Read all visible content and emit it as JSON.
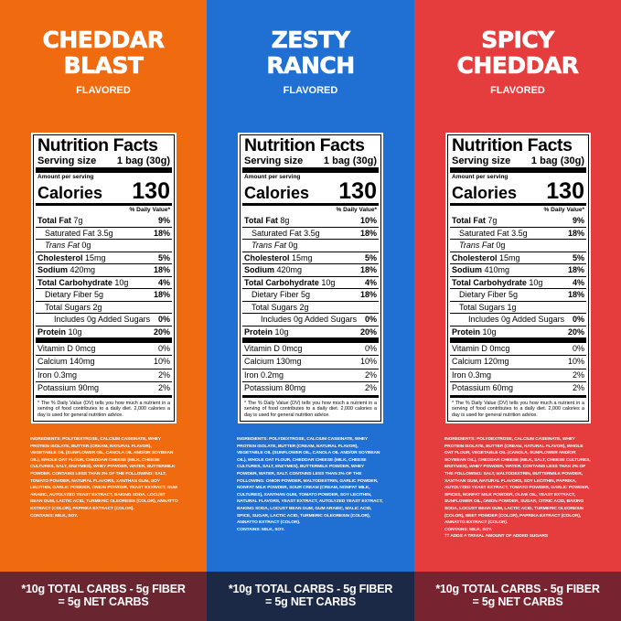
{
  "panels": [
    {
      "title": [
        "CHEDDAR",
        "BLAST"
      ],
      "flavored": "FLAVORED",
      "bg": "#f06a10",
      "footer_bg": "#6a2630",
      "label": {
        "heading": "Nutrition Facts",
        "serving_label": "Serving size",
        "serving": "1 bag (30g)",
        "amount_per_serving": "Amount per serving",
        "calories_label": "Calories",
        "calories": "130",
        "dv_header": "% Daily Value*",
        "rows": [
          {
            "name": "Total Fat",
            "amount": "7g",
            "dv": "9%"
          },
          {
            "name": "Saturated Fat",
            "amount": "3.5g",
            "dv": "18%"
          },
          {
            "name": "Trans Fat",
            "amount": "0g"
          },
          {
            "name": "Cholesterol",
            "amount": "15mg",
            "dv": "5%"
          },
          {
            "name": "Sodium",
            "amount": "420mg",
            "dv": "18%"
          },
          {
            "name": "Total Carbohydrate",
            "amount": "10g",
            "dv": "4%"
          },
          {
            "name": "Dietary Fiber",
            "amount": "5g",
            "dv": "18%"
          },
          {
            "name": "Total Sugars",
            "amount": "2g"
          },
          {
            "name": "Includes 0g Added Sugars",
            "dv": "0%"
          },
          {
            "name": "Protein",
            "amount": "10g",
            "dv": "20%"
          }
        ],
        "vitamins": [
          {
            "name": "Vitamin D 0mcg",
            "dv": "0%"
          },
          {
            "name": "Calcium 140mg",
            "dv": "10%"
          },
          {
            "name": "Iron 0.3mg",
            "dv": "2%"
          },
          {
            "name": "Potassium 90mg",
            "dv": "2%"
          }
        ],
        "footnote": "* The % Daily Value (DV) tells you how much a nutrient in a serving of food contributes to a daily diet. 2,000 calories a day is used for general nutrition advice."
      },
      "ingredients": [
        "INGREDIENTS: POLYDEXTROSE, CALCIUM CASEINATE, WHEY PROTEIN ISOLATE, BUTTER (CREAM, NATURAL FLAVOR), VEGETABLE OIL (SUNFLOWER OIL, CANOLA OIL AND/OR SOYBEAN OIL), WHOLE OAT FLOUR, CHEDDAR CHEESE (MILK, CHEESE CULTURES, SALT, ENZYMES), WHEY POWDER, WATER, BUTTERMILK POWDER. CONTAINS LESS THAN 2% OF THE FOLLOWING: SALT, TOMATO POWDER, NATURAL FLAVORS, XANTHAN GUM, SOY LECITHIN, GARLIC POWDER, ONION POWDER, YEAST EXTRACT, GUM ARABIC, AUTOLYZED YEAST EXTRACT, BAKING SODA, LOCUST BEAN GUM, LACTIC ACID, TURMERIC OLEORESIN (COLOR), ANNATTO EXTRACT (COLOR), PAPRIKA EXTRACT (COLOR).",
        "CONTAINS: MILK, SOY."
      ],
      "footer": [
        "*10g TOTAL CARBS - 5g FIBER",
        "= 5g NET CARBS"
      ]
    },
    {
      "title": [
        "ZESTY",
        "RANCH"
      ],
      "flavored": "FLAVORED",
      "bg": "#1f70d2",
      "footer_bg": "#1b2946",
      "label": {
        "heading": "Nutrition Facts",
        "serving_label": "Serving size",
        "serving": "1 bag (30g)",
        "amount_per_serving": "Amount per serving",
        "calories_label": "Calories",
        "calories": "130",
        "dv_header": "% Daily Value*",
        "rows": [
          {
            "name": "Total Fat",
            "amount": "8g",
            "dv": "10%"
          },
          {
            "name": "Saturated Fat",
            "amount": "3.5g",
            "dv": "18%"
          },
          {
            "name": "Trans Fat",
            "amount": "0g"
          },
          {
            "name": "Cholesterol",
            "amount": "15mg",
            "dv": "5%"
          },
          {
            "name": "Sodium",
            "amount": "420mg",
            "dv": "18%"
          },
          {
            "name": "Total Carbohydrate",
            "amount": "10g",
            "dv": "4%"
          },
          {
            "name": "Dietary Fiber",
            "amount": "5g",
            "dv": "18%"
          },
          {
            "name": "Total Sugars",
            "amount": "2g"
          },
          {
            "name": "Includes 0g Added Sugars",
            "dv": "0%"
          },
          {
            "name": "Protein",
            "amount": "10g",
            "dv": "20%"
          }
        ],
        "vitamins": [
          {
            "name": "Vitamin D 0mcg",
            "dv": "0%"
          },
          {
            "name": "Calcium 130mg",
            "dv": "10%"
          },
          {
            "name": "Iron 0.2mg",
            "dv": "2%"
          },
          {
            "name": "Potassium 80mg",
            "dv": "2%"
          }
        ],
        "footnote": "* The % Daily Value (DV) tells you how much a nutrient in a serving of food contributes to a daily diet. 2,000 calories a day is used for general nutrition advice."
      },
      "ingredients": [
        "INGREDIENTS: POLYDEXTROSE, CALCIUM CASEINATE, WHEY PROTEIN ISOLATE, BUTTER (CREAM, NATURAL FLAVOR), VEGETABLE OIL (SUNFLOWER OIL, CANOLA OIL AND/OR SOYBEAN OIL), WHOLE OAT FLOUR, CHEDDAR CHEESE (MILK, CHEESE CULTURES, SALT, ENZYMES), BUTTERMILK POWDER, WHEY POWDER, WATER, SALT. CONTAINS LESS THAN 2% OF THE FOLLOWING: ONION POWDER, MALTODEXTRIN, GARLIC POWDER, NONFAT MILK POWDER, SOUR CREAM (CREAM, NONFAT MILK, CULTURES), XANTHAN GUM, TOMATO POWDER, SOY LECITHIN, NATURAL FLAVORS, YEAST EXTRACT, AUTOLYZED YEAST EXTRACT, BAKING SODA, LOCUST BEAN GUM, GUM ARABIC, MALIC ACID, SPICE, SUGAR, LACTIC ACID, TURMERIC OLEORESIN (COLOR), ANNATTO EXTRACT (COLOR).",
        "CONTAINS: MILK, SOY."
      ],
      "footer": [
        "*10g TOTAL CARBS - 5g FIBER",
        "= 5g NET CARBS"
      ]
    },
    {
      "title": [
        "SPICY",
        "CHEDDAR"
      ],
      "flavored": "FLAVORED",
      "bg": "#e53c3e",
      "footer_bg": "#782430",
      "label": {
        "heading": "Nutrition Facts",
        "serving_label": "Serving size",
        "serving": "1 bag (30g)",
        "amount_per_serving": "Amount per serving",
        "calories_label": "Calories",
        "calories": "130",
        "dv_header": "% Daily Value*",
        "rows": [
          {
            "name": "Total Fat",
            "amount": "7g",
            "dv": "9%"
          },
          {
            "name": "Saturated Fat",
            "amount": "3.5g",
            "dv": "18%"
          },
          {
            "name": "Trans Fat",
            "amount": "0g"
          },
          {
            "name": "Cholesterol",
            "amount": "15mg",
            "dv": "5%"
          },
          {
            "name": "Sodium",
            "amount": "410mg",
            "dv": "18%"
          },
          {
            "name": "Total Carbohydrate",
            "amount": "10g",
            "dv": "4%"
          },
          {
            "name": "Dietary Fiber",
            "amount": "5g",
            "dv": "18%"
          },
          {
            "name": "Total Sugars",
            "amount": "1g"
          },
          {
            "name": "Includes 0g Added Sugars",
            "dv": "0%"
          },
          {
            "name": "Protein",
            "amount": "10g",
            "dv": "20%"
          }
        ],
        "vitamins": [
          {
            "name": "Vitamin D 0mcg",
            "dv": "0%"
          },
          {
            "name": "Calcium 120mg",
            "dv": "10%"
          },
          {
            "name": "Iron 0.3mg",
            "dv": "2%"
          },
          {
            "name": "Potassium 60mg",
            "dv": "2%"
          }
        ],
        "footnote": "* The % Daily Value (DV) tells you how much a nutrient in a serving of food contributes to a daily diet. 2,000 calories a day is used for general nutrition advice."
      },
      "ingredients": [
        "INGREDIENTS: POLYDEXTROSE, CALCIUM CASEINATE, WHEY PROTEIN ISOLATE, BUTTER (CREAM, NATURAL FLAVOR), WHOLE OAT FLOUR, VEGETABLE OIL (CANOLA, SUNFLOWER AND/OR SOYBEAN OIL), CHEDDAR CHEESE (MILK, SALT, CHEESE CULTURES, ENZYMES), WHEY POWDER, WATER. CONTAINS LESS THAN 2% OF THE FOLLOWING: SALT, MALTODEXTRIN, BUTTERMILK POWDER, XANTHAN GUM, NATURAL FLAVORS, SOY LECITHIN, PAPRIKA, AUTOLYZED YEAST EXTRACT, TOMATO POWDER, GARLIC POWDER, SPICES, NONFAT MILK POWDER, OLIVE OIL, YEAST EXTRACT, SUNFLOWER OIL, ONION POWDER, SUGAR, CITRIC ACID, BAKING SODA, LOCUST BEAN GUM, LACTIC ACID, TURMERIC OLEORESIN (COLOR), BEET POWDER (COLOR), PAPRIKA EXTRACT (COLOR), ANNATTO EXTRACT (COLOR).",
        "CONTAINS: MILK, SOY.",
        "†† ADDS A TRIVIAL AMOUNT OF ADDED SUGARS"
      ],
      "footer": [
        "*10g TOTAL CARBS - 5g FIBER",
        "= 5g NET CARBS"
      ]
    }
  ]
}
